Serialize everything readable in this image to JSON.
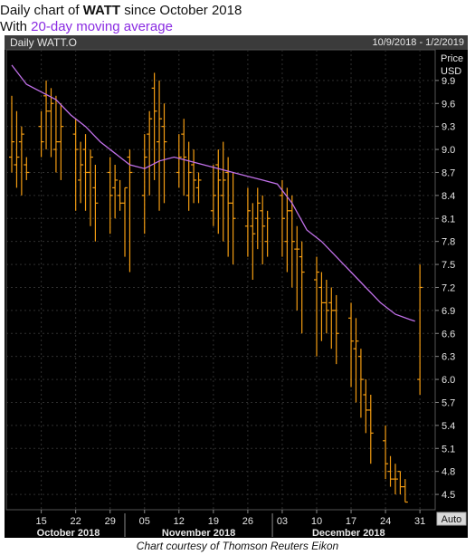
{
  "header": {
    "title_prefix": "Daily chart of ",
    "title_ticker": "WATT",
    "title_suffix": " since October 2018",
    "subtitle_prefix": "With ",
    "subtitle_highlight": "20-day moving average"
  },
  "panel": {
    "left_label": "Daily WATT.O",
    "right_label": "10/9/2018 - 1/2/2019",
    "axis_title_line1": "Price",
    "axis_title_line2": "USD",
    "auto_button": "Auto"
  },
  "footer": {
    "credit": "Chart courtesy of Thomson Reuters Eikon"
  },
  "colors": {
    "background": "#000000",
    "bars": "#f39c12",
    "moving_average": "#c070e8",
    "grid": "#2f2f2f",
    "axis_text": "#e6e6e6",
    "header_bar": "#3b3b3b"
  },
  "chart_data": {
    "type": "ohlc",
    "title": "Daily chart of WATT since October 2018",
    "subtitle": "With 20-day moving average",
    "ylabel": "Price USD",
    "ylim": [
      4.3,
      10.3
    ],
    "yticks": [
      4.5,
      4.8,
      5.1,
      5.4,
      5.7,
      6,
      6.3,
      6.6,
      6.9,
      7.2,
      7.5,
      7.8,
      8.1,
      8.4,
      8.7,
      9,
      9.3,
      9.6,
      9.9
    ],
    "x_tick_labels": [
      "15",
      "22",
      "29",
      "05",
      "12",
      "19",
      "26",
      "03",
      "10",
      "17",
      "24",
      "31"
    ],
    "x_tick_days": [
      6,
      13,
      20,
      27,
      34,
      41,
      48,
      55,
      62,
      69,
      76,
      83
    ],
    "month_labels": [
      {
        "label": "October 2018",
        "start_day": 0,
        "end_day": 23
      },
      {
        "label": "November 2018",
        "start_day": 23,
        "end_day": 53
      },
      {
        "label": "December 2018",
        "start_day": 53,
        "end_day": 84
      }
    ],
    "xlim": [
      0,
      85
    ],
    "series": [
      {
        "name": "WATT.O daily",
        "day": [
          0,
          1,
          2,
          3,
          6,
          7,
          8,
          9,
          10,
          13,
          14,
          15,
          16,
          17,
          20,
          21,
          22,
          23,
          24,
          27,
          28,
          29,
          30,
          31,
          34,
          35,
          36,
          37,
          38,
          41,
          42,
          43,
          44,
          45,
          48,
          49,
          50,
          51,
          52,
          55,
          56,
          57,
          58,
          59,
          62,
          63,
          64,
          65,
          66,
          69,
          70,
          71,
          72,
          73,
          76,
          77,
          78,
          79,
          80,
          83
        ],
        "high": [
          9.7,
          9.5,
          9.3,
          8.9,
          9.5,
          9.9,
          9.8,
          9.7,
          9.6,
          9.4,
          9.1,
          9.2,
          9.0,
          8.8,
          8.9,
          8.8,
          8.6,
          8.5,
          9.0,
          9.2,
          9.5,
          10.0,
          9.9,
          9.6,
          9.2,
          9.4,
          9.1,
          9.0,
          8.7,
          8.8,
          9.0,
          9.1,
          8.9,
          8.7,
          8.5,
          8.3,
          8.5,
          8.4,
          8.2,
          8.6,
          8.5,
          8.4,
          8.0,
          7.8,
          7.6,
          7.4,
          7.3,
          7.2,
          7.1,
          7.0,
          6.8,
          6.4,
          6.0,
          5.8,
          5.4,
          5.0,
          4.9,
          4.8,
          4.7,
          7.5
        ],
        "low": [
          8.7,
          8.5,
          8.4,
          8.6,
          8.9,
          9.0,
          8.9,
          8.7,
          8.6,
          8.2,
          8.3,
          8.2,
          8.0,
          7.8,
          7.9,
          8.1,
          8.2,
          7.6,
          7.4,
          7.9,
          8.4,
          8.6,
          8.2,
          8.3,
          8.5,
          8.4,
          8.2,
          8.3,
          8.3,
          8.0,
          7.9,
          7.8,
          7.6,
          7.5,
          7.6,
          7.3,
          7.7,
          7.5,
          7.6,
          7.6,
          7.4,
          7.2,
          6.9,
          6.6,
          6.3,
          6.5,
          6.6,
          6.4,
          6.2,
          5.9,
          5.7,
          5.5,
          5.3,
          4.9,
          4.7,
          4.6,
          4.5,
          4.5,
          4.4,
          5.8
        ],
        "open": [
          8.9,
          8.8,
          9.1,
          8.8,
          9.3,
          9.7,
          9.5,
          9.0,
          9.1,
          9.2,
          8.6,
          9.0,
          8.7,
          8.5,
          8.7,
          8.5,
          8.4,
          8.3,
          8.9,
          8.4,
          9.2,
          9.8,
          9.1,
          9.3,
          8.7,
          9.2,
          8.4,
          8.8,
          8.5,
          8.2,
          8.8,
          8.4,
          8.7,
          8.3,
          8.0,
          8.0,
          8.1,
          8.2,
          7.8,
          8.4,
          7.8,
          8.2,
          7.7,
          7.6,
          7.3,
          7.2,
          7.0,
          7.0,
          6.9,
          6.8,
          6.4,
          6.3,
          5.8,
          5.6,
          5.2,
          4.8,
          4.7,
          4.8,
          4.6,
          6.0
        ],
        "close": [
          9.1,
          8.9,
          9.2,
          8.7,
          9.1,
          9.5,
          9.6,
          9.1,
          9.3,
          9.0,
          8.8,
          8.7,
          8.9,
          8.3,
          8.4,
          8.6,
          8.3,
          8.5,
          8.7,
          8.9,
          9.4,
          9.5,
          9.4,
          9.1,
          8.9,
          8.9,
          8.7,
          8.6,
          8.6,
          8.4,
          8.6,
          8.6,
          8.3,
          8.1,
          8.2,
          7.9,
          8.3,
          8.0,
          8.1,
          8.1,
          8.2,
          7.8,
          7.7,
          7.4,
          7.4,
          7.0,
          6.9,
          6.9,
          6.6,
          6.5,
          6.5,
          6.0,
          5.6,
          5.3,
          4.9,
          4.7,
          4.7,
          4.6,
          4.4,
          7.2
        ]
      },
      {
        "name": "20-day moving average",
        "day": [
          0,
          3,
          6,
          9,
          12,
          15,
          18,
          21,
          24,
          27,
          30,
          33,
          36,
          39,
          42,
          45,
          48,
          51,
          54,
          57,
          60,
          63,
          66,
          69,
          72,
          75,
          78,
          81,
          82
        ],
        "values": [
          10.1,
          9.85,
          9.75,
          9.65,
          9.45,
          9.3,
          9.1,
          8.95,
          8.8,
          8.75,
          8.85,
          8.9,
          8.85,
          8.8,
          8.75,
          8.7,
          8.65,
          8.6,
          8.55,
          8.3,
          7.95,
          7.8,
          7.6,
          7.4,
          7.2,
          7.0,
          6.85,
          6.78,
          6.76
        ]
      }
    ],
    "grid": true
  }
}
